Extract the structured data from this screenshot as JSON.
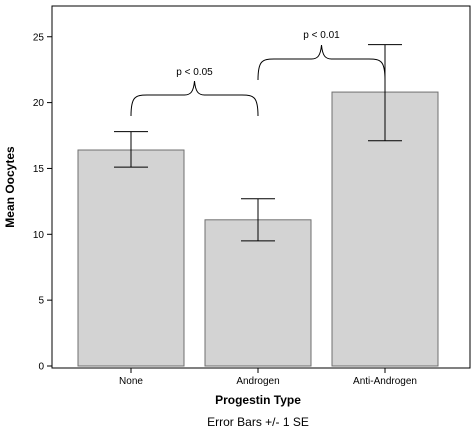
{
  "chart_data": {
    "type": "bar",
    "categories": [
      "None",
      "Androgen",
      "Anti-Androgen"
    ],
    "values": [
      16.4,
      11.1,
      20.8
    ],
    "error_bars": {
      "lower": [
        15.1,
        9.5,
        17.1
      ],
      "upper": [
        17.8,
        12.7,
        24.4
      ]
    },
    "title": "",
    "xlabel": "Progestin Type",
    "ylabel": "Mean Oocytes",
    "ylim": [
      0,
      27
    ],
    "yticks": [
      0,
      5,
      10,
      15,
      20,
      25
    ],
    "grid": false,
    "bar_color": "#d3d3d3",
    "note": "Error Bars +/- 1 SE",
    "annotations": [
      {
        "text": "p < 0.05",
        "from": "None",
        "to": "Androgen"
      },
      {
        "text": "p < 0.01",
        "from": "Androgen",
        "to": "Anti-Androgen"
      }
    ]
  }
}
